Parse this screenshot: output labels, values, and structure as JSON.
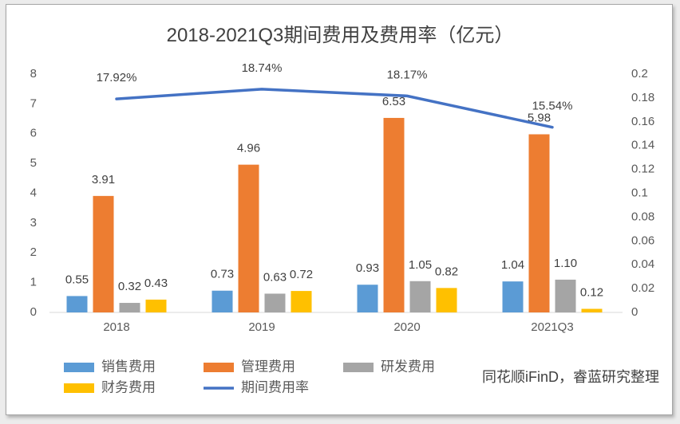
{
  "chart_data": {
    "type": "bar",
    "title": "2018-2021Q3期间费用及费用率（亿元）",
    "categories": [
      "2018",
      "2019",
      "2020",
      "2021Q3"
    ],
    "series": [
      {
        "name": "销售费用",
        "color": "#5B9BD5",
        "values": [
          0.55,
          0.73,
          0.93,
          1.04
        ],
        "labels": [
          "0.55",
          "0.73",
          "0.93",
          "1.04"
        ]
      },
      {
        "name": "管理费用",
        "color": "#ED7D31",
        "values": [
          3.91,
          4.96,
          6.53,
          5.98
        ],
        "labels": [
          "3.91",
          "4.96",
          "6.53",
          "5.98"
        ]
      },
      {
        "name": "研发费用",
        "color": "#A5A5A5",
        "values": [
          0.32,
          0.63,
          1.05,
          1.1
        ],
        "labels": [
          "0.32",
          "0.63",
          "1.05",
          "1.10"
        ]
      },
      {
        "name": "财务费用",
        "color": "#FFC000",
        "values": [
          0.43,
          0.72,
          0.82,
          0.12
        ],
        "labels": [
          "0.43",
          "0.72",
          "0.82",
          "0.12"
        ]
      }
    ],
    "line_series": [
      {
        "name": "期间费用率",
        "color": "#4472C4",
        "values": [
          0.1792,
          0.1874,
          0.1817,
          0.1554
        ],
        "labels": [
          "17.92%",
          "18.74%",
          "18.17%",
          "15.54%"
        ]
      }
    ],
    "y_left": {
      "range": [
        0,
        8
      ],
      "ticks": [
        0,
        1,
        2,
        3,
        4,
        5,
        6,
        7,
        8
      ]
    },
    "y_right": {
      "range": [
        0,
        0.2
      ],
      "ticks": [
        0,
        0.02,
        0.04,
        0.06,
        0.08,
        0.1,
        0.12,
        0.14,
        0.16,
        0.18,
        0.2
      ]
    },
    "grid": false,
    "legend": "bottom"
  },
  "source": "同花顺iFinD，睿蓝研究整理"
}
